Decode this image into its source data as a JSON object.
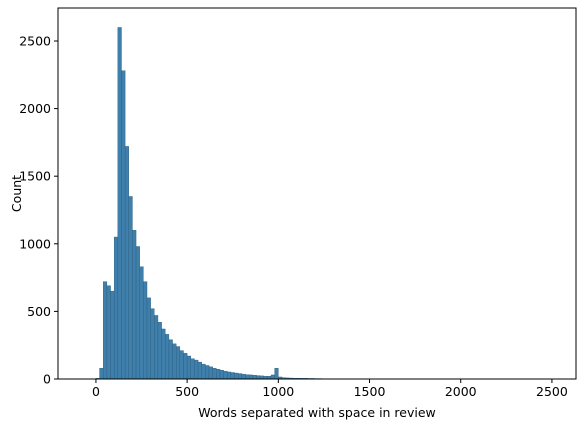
{
  "chart_data": {
    "type": "histogram",
    "xlabel": "Words separated with space in review",
    "ylabel": "Count",
    "color": "#3f7fab",
    "edgecolor": "#2b5b7c",
    "bins": [
      0,
      20,
      40,
      60,
      80,
      100,
      120,
      140,
      160,
      180,
      200,
      220,
      240,
      260,
      280,
      300,
      320,
      340,
      360,
      380,
      400,
      420,
      440,
      460,
      480,
      500,
      520,
      540,
      560,
      580,
      600,
      620,
      640,
      660,
      680,
      700,
      720,
      740,
      760,
      780,
      800,
      820,
      840,
      860,
      880,
      900,
      920,
      940,
      960,
      980,
      1000,
      1020,
      1040,
      1060,
      1080,
      1100,
      1120,
      1140,
      1160,
      1180,
      1200,
      1220,
      1240,
      1260,
      1280,
      1300,
      1320,
      1340,
      1360,
      1380,
      1400,
      1420,
      1440,
      1460,
      1480,
      1500,
      1520,
      1540,
      1560,
      1580,
      1600,
      1620,
      1640,
      1660,
      1680,
      1700,
      1720,
      1740,
      1760,
      1780,
      1800,
      1820,
      1840,
      1860,
      1880,
      1900,
      1920,
      1940,
      1960,
      1980,
      2000,
      2020,
      2040,
      2060,
      2080,
      2100,
      2120,
      2140,
      2160,
      2180,
      2200,
      2220,
      2240,
      2260,
      2280,
      2300,
      2320,
      2340,
      2360,
      2380,
      2400,
      2420,
      2440,
      2460,
      2480
    ],
    "values": [
      5,
      80,
      720,
      690,
      650,
      1050,
      2600,
      2280,
      1720,
      1350,
      1100,
      980,
      830,
      720,
      600,
      520,
      470,
      420,
      370,
      330,
      290,
      260,
      240,
      210,
      190,
      170,
      150,
      140,
      125,
      110,
      100,
      90,
      80,
      72,
      65,
      58,
      52,
      48,
      44,
      40,
      36,
      32,
      30,
      28,
      25,
      23,
      21,
      20,
      30,
      80,
      15,
      10,
      8,
      7,
      6,
      6,
      5,
      5,
      4,
      4,
      3,
      3,
      2,
      2,
      2,
      1,
      1,
      1,
      1,
      1,
      1,
      1,
      0,
      1,
      0,
      0,
      0,
      0,
      0,
      0,
      1,
      0,
      0,
      0,
      0,
      0,
      0,
      0,
      0,
      0,
      0,
      0,
      0,
      0,
      0,
      0,
      0,
      0,
      0,
      0,
      0,
      0,
      0,
      0,
      0,
      0,
      0,
      0,
      0,
      0,
      0,
      0,
      0,
      0,
      0,
      0,
      0,
      0,
      0,
      0,
      0,
      0,
      1,
      1
    ],
    "xlim": [
      -208,
      2632
    ],
    "ylim": [
      0,
      2744
    ],
    "xticks": [
      0,
      500,
      1000,
      1500,
      2000,
      2500
    ],
    "yticks": [
      0,
      500,
      1000,
      1500,
      2000,
      2500
    ]
  }
}
